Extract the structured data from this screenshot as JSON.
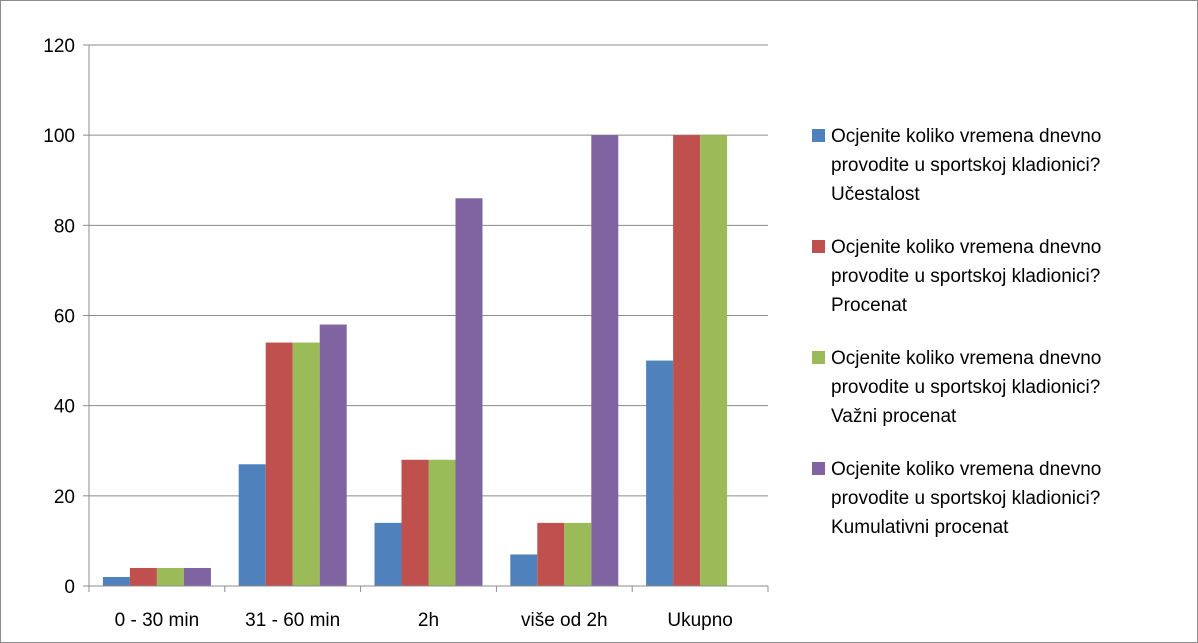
{
  "chart_data": {
    "type": "bar",
    "categories": [
      "0 - 30 min",
      "31 - 60 min",
      "2h",
      "više od 2h",
      "Ukupno"
    ],
    "series": [
      {
        "name": "Ocjenite koliko vremena dnevno provodite u sportskoj kladionici? Učestalost",
        "name_lines": [
          "Ocjenite koliko vremena dnevno",
          "provodite u sportskoj kladionici?",
          "Učestalost"
        ],
        "color": "#4F81BD",
        "values": [
          2,
          27,
          14,
          7,
          50
        ]
      },
      {
        "name": "Ocjenite koliko vremena dnevno provodite u sportskoj kladionici? Procenat",
        "name_lines": [
          "Ocjenite koliko vremena dnevno",
          "provodite u sportskoj kladionici?",
          "Procenat"
        ],
        "color": "#C0504D",
        "values": [
          4,
          54,
          28,
          14,
          100
        ]
      },
      {
        "name": "Ocjenite koliko vremena dnevno provodite u sportskoj kladionici? Važni procenat",
        "name_lines": [
          "Ocjenite koliko vremena dnevno",
          "provodite u sportskoj kladionici?",
          "Važni procenat"
        ],
        "color": "#9BBB59",
        "values": [
          4,
          54,
          28,
          14,
          100
        ]
      },
      {
        "name": "Ocjenite koliko vremena dnevno provodite u sportskoj kladionici? Kumulativni procenat",
        "name_lines": [
          "Ocjenite koliko vremena dnevno",
          "provodite u sportskoj kladionici?",
          "Kumulativni procenat"
        ],
        "color": "#8064A2",
        "values": [
          4,
          58,
          86,
          100,
          null
        ]
      }
    ],
    "yticks": [
      0,
      20,
      40,
      60,
      80,
      100,
      120
    ],
    "ylim": [
      0,
      120
    ],
    "title": "",
    "xlabel": "",
    "ylabel": "",
    "grid": true,
    "legend_position": "right"
  }
}
